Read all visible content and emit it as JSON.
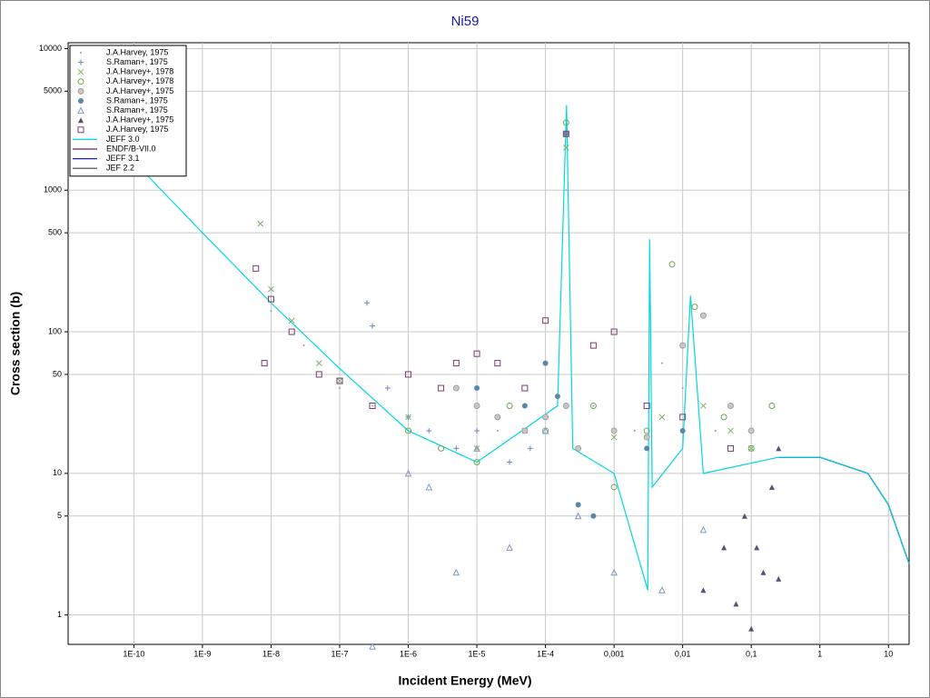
{
  "chart_data": {
    "type": "scatter",
    "title": "Ni59",
    "xlabel": "Incident Energy (MeV)",
    "ylabel": "Cross section (b)",
    "xscale": "log",
    "yscale": "log",
    "grid": true,
    "legend": "upper left",
    "xlim": [
      1.1e-11,
      20
    ],
    "ylim": [
      0.62,
      11000
    ],
    "xticks": [
      {
        "value": 1e-10,
        "label": "1E-10"
      },
      {
        "value": 1e-09,
        "label": "1E-9"
      },
      {
        "value": 1e-08,
        "label": "1E-8"
      },
      {
        "value": 1e-07,
        "label": "1E-7"
      },
      {
        "value": 1e-06,
        "label": "1E-6"
      },
      {
        "value": 1e-05,
        "label": "1E-5"
      },
      {
        "value": 0.0001,
        "label": "1E-4"
      },
      {
        "value": 0.001,
        "label": "0,001"
      },
      {
        "value": 0.01,
        "label": "0,01"
      },
      {
        "value": 0.1,
        "label": "0,1"
      },
      1,
      10
    ],
    "yticks": [
      1,
      5,
      10,
      50,
      100,
      500,
      1000,
      5000,
      10000
    ],
    "series": [
      {
        "name": "J.A.Harvey, 1975",
        "mode": "markers",
        "marker": "dot",
        "color": "#9a9a9a",
        "x": [
          1e-08,
          3e-08,
          1e-07,
          3e-07,
          1e-06,
          5e-06,
          2e-05,
          0.0001,
          0.0002,
          0.0005,
          0.002,
          0.005,
          0.01,
          0.03,
          0.1
        ],
        "values": [
          140,
          80,
          40,
          30,
          25,
          15,
          20,
          25,
          1000,
          30,
          20,
          60,
          40,
          20,
          15
        ]
      },
      {
        "name": "S.Raman+, 1975",
        "mode": "markers",
        "marker": "plus",
        "color": "#6f86c0",
        "x": [
          2.5e-07,
          3e-07,
          5e-07,
          1e-06,
          2e-06,
          5e-06,
          1e-05,
          3e-05,
          6e-05
        ],
        "values": [
          160,
          110,
          40,
          25,
          20,
          15,
          20,
          12,
          15
        ]
      },
      {
        "name": "J.A.Harvey+, 1978",
        "mode": "markers",
        "marker": "cross",
        "color": "#7cb36a",
        "x": [
          7e-09,
          1e-08,
          2e-08,
          5e-08,
          1e-07,
          1e-06,
          1e-05,
          5e-05,
          0.0002,
          0.001,
          0.005,
          0.02,
          0.05,
          0.1
        ],
        "values": [
          580,
          200,
          120,
          60,
          45,
          25,
          15,
          20,
          2000,
          18,
          25,
          30,
          20,
          15
        ]
      },
      {
        "name": "J.A.Harvey+, 1978",
        "mode": "markers",
        "marker": "circle-open",
        "color": "#6aa84f",
        "x": [
          1e-06,
          3e-06,
          1e-05,
          3e-05,
          0.0001,
          0.0002,
          0.0005,
          0.001,
          0.003,
          0.007,
          0.015,
          0.04,
          0.1,
          0.2
        ],
        "values": [
          20,
          15,
          12,
          30,
          20,
          3000,
          30,
          8,
          20,
          300,
          150,
          25,
          15,
          30
        ]
      },
      {
        "name": "J.A.Harvey+, 1975",
        "mode": "markers",
        "marker": "circle-gray",
        "color": "#a0a0a0",
        "x": [
          5e-06,
          1e-05,
          2e-05,
          5e-05,
          0.0001,
          0.0002,
          0.0003,
          0.001,
          0.003,
          0.01,
          0.02,
          0.05,
          0.1
        ],
        "values": [
          40,
          30,
          25,
          20,
          25,
          30,
          15,
          20,
          18,
          80,
          130,
          30,
          20
        ]
      },
      {
        "name": "S.Raman+, 1975",
        "mode": "markers",
        "marker": "circle-filled",
        "color": "#5b86a8",
        "x": [
          1e-05,
          5e-05,
          0.0001,
          0.00015,
          0.0002,
          0.0003,
          0.0005,
          0.003,
          0.01
        ],
        "values": [
          40,
          30,
          60,
          35,
          2500,
          6,
          5,
          15,
          20
        ]
      },
      {
        "name": "S.Raman+, 1975",
        "mode": "markers",
        "marker": "triangle-open",
        "color": "#8796c8",
        "x": [
          3e-07,
          1e-06,
          2e-06,
          5e-06,
          1e-05,
          3e-05,
          0.0001,
          0.0003,
          0.001,
          0.005,
          0.02
        ],
        "values": [
          0.6,
          10,
          8,
          2,
          15,
          3,
          20,
          5,
          2,
          1.5,
          4
        ]
      },
      {
        "name": "J.A.Harvey+, 1975",
        "mode": "markers",
        "marker": "triangle-filled",
        "color": "#5e4c7a",
        "x": [
          0.02,
          0.04,
          0.06,
          0.08,
          0.1,
          0.12,
          0.15,
          0.2,
          0.25,
          0.25
        ],
        "values": [
          1.5,
          3,
          1.2,
          5,
          0.8,
          3,
          2,
          8,
          15,
          1.8
        ]
      },
      {
        "name": "J.A.Harvey, 1975",
        "mode": "markers",
        "marker": "square-open",
        "color": "#7c3a6e",
        "x": [
          6e-09,
          8e-09,
          1e-08,
          2e-08,
          5e-08,
          1e-07,
          3e-07,
          1e-06,
          3e-06,
          5e-06,
          1e-05,
          2e-05,
          5e-05,
          0.0001,
          0.0002,
          0.0005,
          0.001,
          0.003,
          0.01,
          0.05
        ],
        "values": [
          280,
          60,
          170,
          100,
          50,
          45,
          30,
          50,
          40,
          60,
          70,
          60,
          40,
          120,
          2500,
          80,
          100,
          30,
          25,
          15
        ]
      },
      {
        "name": "JEFF 3.0",
        "mode": "line",
        "color": "#00d8e0",
        "x": [
          1.5e-10,
          1e-09,
          1e-08,
          1e-07,
          1e-06,
          1e-05,
          0.00015,
          0.000203,
          0.00025,
          0.001,
          0.0031,
          0.0033,
          0.0036,
          0.01,
          0.013,
          0.02,
          0.25,
          1,
          5,
          10,
          20
        ],
        "values": [
          1300,
          500,
          160,
          55,
          20,
          12,
          30,
          4000,
          15,
          10,
          1.5,
          450,
          8,
          15,
          180,
          10,
          13,
          13,
          10,
          6,
          2.3
        ]
      },
      {
        "name": "ENDF/B-VII.0",
        "mode": "line",
        "color": "#7a1f4f",
        "x": [
          0.25,
          1,
          5,
          10,
          20
        ],
        "values": [
          13,
          13,
          10,
          6,
          2.3
        ]
      },
      {
        "name": "JEFF 3.1",
        "mode": "line",
        "color": "#2020c0",
        "x": [
          0.25,
          1,
          5,
          10,
          20
        ],
        "values": [
          13,
          13,
          10,
          6,
          2.3
        ]
      },
      {
        "name": "JEF 2.2",
        "mode": "line",
        "color": "#404040",
        "x": [
          0.25,
          1,
          5,
          10,
          20
        ],
        "values": [
          13,
          13,
          10,
          6,
          2.3
        ]
      }
    ]
  }
}
